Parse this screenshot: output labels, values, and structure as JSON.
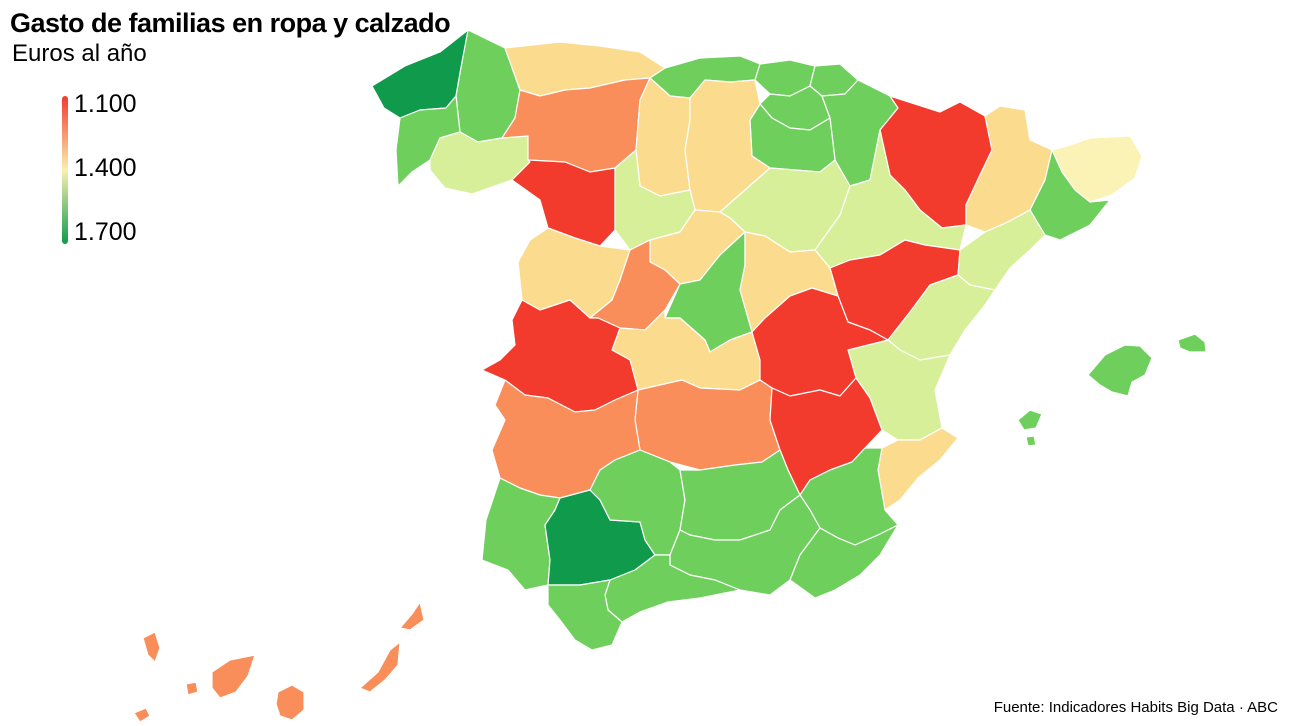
{
  "title": "Gasto de familias en ropa y calzado",
  "subtitle": "Euros al año",
  "legend": {
    "labels": [
      "1.100",
      "1.400",
      "1.700"
    ],
    "colors": [
      "#f23a2d",
      "#f9f0b0",
      "#0f9a4c"
    ]
  },
  "source": "Fuente: Indicadores Habits Big Data · ABC",
  "palette": {
    "dark_green": "#0f9a4c",
    "green": "#6fcf5c",
    "light_green": "#d6ef98",
    "pale_yellow": "#fbf3b5",
    "yellow": "#fbdc8f",
    "orange": "#f98e5a",
    "red": "#f23a2d"
  },
  "provinces": [
    {
      "name": "A Coruña",
      "color": "dark_green"
    },
    {
      "name": "Lugo",
      "color": "green"
    },
    {
      "name": "Pontevedra",
      "color": "green"
    },
    {
      "name": "Ourense",
      "color": "light_green"
    },
    {
      "name": "Asturias",
      "color": "yellow"
    },
    {
      "name": "Cantabria",
      "color": "green"
    },
    {
      "name": "Vizcaya",
      "color": "green"
    },
    {
      "name": "Guipúzcoa",
      "color": "green"
    },
    {
      "name": "Álava",
      "color": "green"
    },
    {
      "name": "Navarra",
      "color": "green"
    },
    {
      "name": "La Rioja",
      "color": "green"
    },
    {
      "name": "León",
      "color": "orange"
    },
    {
      "name": "Palencia",
      "color": "yellow"
    },
    {
      "name": "Burgos",
      "color": "yellow"
    },
    {
      "name": "Zamora",
      "color": "red"
    },
    {
      "name": "Valladolid",
      "color": "light_green"
    },
    {
      "name": "Soria",
      "color": "light_green"
    },
    {
      "name": "Segovia",
      "color": "yellow"
    },
    {
      "name": "Salamanca",
      "color": "yellow"
    },
    {
      "name": "Ávila",
      "color": "orange"
    },
    {
      "name": "Huesca",
      "color": "red"
    },
    {
      "name": "Zaragoza",
      "color": "light_green"
    },
    {
      "name": "Teruel",
      "color": "red"
    },
    {
      "name": "Lleida",
      "color": "yellow"
    },
    {
      "name": "Girona",
      "color": "pale_yellow"
    },
    {
      "name": "Barcelona",
      "color": "green"
    },
    {
      "name": "Tarragona",
      "color": "light_green"
    },
    {
      "name": "Castellón",
      "color": "light_green"
    },
    {
      "name": "Valencia",
      "color": "light_green"
    },
    {
      "name": "Alicante",
      "color": "yellow"
    },
    {
      "name": "Madrid",
      "color": "green"
    },
    {
      "name": "Guadalajara",
      "color": "yellow"
    },
    {
      "name": "Toledo",
      "color": "yellow"
    },
    {
      "name": "Cuenca",
      "color": "red"
    },
    {
      "name": "Ciudad Real",
      "color": "orange"
    },
    {
      "name": "Albacete",
      "color": "red"
    },
    {
      "name": "Cáceres",
      "color": "red"
    },
    {
      "name": "Badajoz",
      "color": "orange"
    },
    {
      "name": "Murcia",
      "color": "green"
    },
    {
      "name": "Huelva",
      "color": "green"
    },
    {
      "name": "Sevilla",
      "color": "dark_green"
    },
    {
      "name": "Córdoba",
      "color": "green"
    },
    {
      "name": "Jaén",
      "color": "green"
    },
    {
      "name": "Granada",
      "color": "green"
    },
    {
      "name": "Almería",
      "color": "green"
    },
    {
      "name": "Málaga",
      "color": "green"
    },
    {
      "name": "Cádiz",
      "color": "green"
    },
    {
      "name": "Mallorca",
      "color": "green"
    },
    {
      "name": "Menorca",
      "color": "green"
    },
    {
      "name": "Ibiza",
      "color": "green"
    },
    {
      "name": "Canarias",
      "color": "orange"
    }
  ]
}
